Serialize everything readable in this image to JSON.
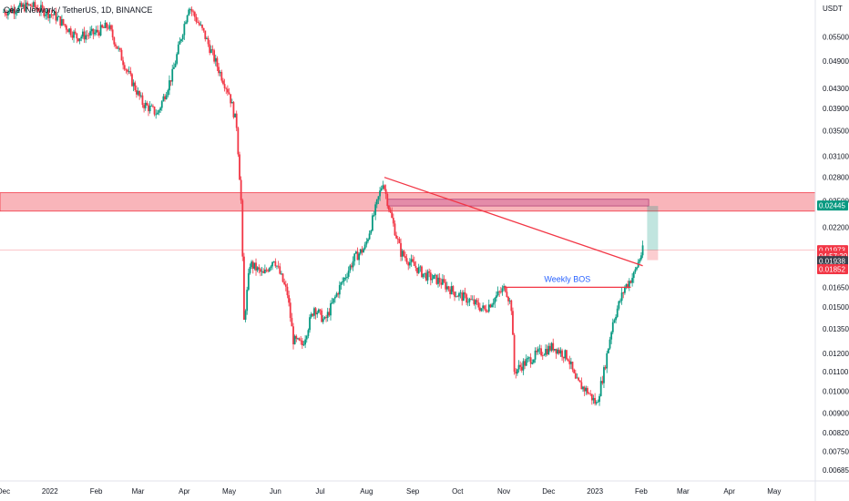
{
  "header": {
    "title": "Celer Network / TetherUS, 1D, BINANCE"
  },
  "chart_data": {
    "type": "candlestick",
    "symbol": "CELR/USDT",
    "timeframe": "1D",
    "exchange": "BINANCE",
    "y_unit": "USDT",
    "y_scale": "log",
    "y_range": [
      0.0065,
      0.064
    ],
    "x_range": [
      "2021-12-01",
      "2023-05-31"
    ],
    "price_ticks": [
      "0.05500",
      "0.04900",
      "0.04300",
      "0.03900",
      "0.03500",
      "0.03100",
      "0.02800",
      "0.02500",
      "0.02200",
      "0.01650",
      "0.01500",
      "0.01350",
      "0.01200",
      "0.01100",
      "0.01000",
      "0.00900",
      "0.00820",
      "0.00750",
      "0.00685"
    ],
    "time_ticks": [
      {
        "date": "2021-12-01",
        "label": "Dec"
      },
      {
        "date": "2022-01-01",
        "label": "2022"
      },
      {
        "date": "2022-02-01",
        "label": "Feb"
      },
      {
        "date": "2022-03-01",
        "label": "Mar"
      },
      {
        "date": "2022-04-01",
        "label": "Apr"
      },
      {
        "date": "2022-05-01",
        "label": "May"
      },
      {
        "date": "2022-06-01",
        "label": "Jun"
      },
      {
        "date": "2022-07-01",
        "label": "Jul"
      },
      {
        "date": "2022-08-01",
        "label": "Aug"
      },
      {
        "date": "2022-09-01",
        "label": "Sep"
      },
      {
        "date": "2022-10-01",
        "label": "Oct"
      },
      {
        "date": "2022-11-01",
        "label": "Nov"
      },
      {
        "date": "2022-12-01",
        "label": "Dec"
      },
      {
        "date": "2023-01-01",
        "label": "2023"
      },
      {
        "date": "2023-02-01",
        "label": "Feb"
      },
      {
        "date": "2023-03-01",
        "label": "Mar"
      },
      {
        "date": "2023-04-01",
        "label": "Apr"
      },
      {
        "date": "2023-05-01",
        "label": "May"
      }
    ],
    "price_path": [
      [
        "2021-12-01",
        0.062
      ],
      [
        "2021-12-20",
        0.064
      ],
      [
        "2022-01-05",
        0.061
      ],
      [
        "2022-01-20",
        0.055
      ],
      [
        "2022-02-01",
        0.056
      ],
      [
        "2022-02-10",
        0.058
      ],
      [
        "2022-02-25",
        0.045
      ],
      [
        "2022-03-05",
        0.04
      ],
      [
        "2022-03-15",
        0.038
      ],
      [
        "2022-03-25",
        0.046
      ],
      [
        "2022-04-05",
        0.064
      ],
      [
        "2022-04-15",
        0.056
      ],
      [
        "2022-04-25",
        0.047
      ],
      [
        "2022-05-02",
        0.042
      ],
      [
        "2022-05-07",
        0.036
      ],
      [
        "2022-05-10",
        0.025
      ],
      [
        "2022-05-12",
        0.014
      ],
      [
        "2022-05-16",
        0.0185
      ],
      [
        "2022-05-25",
        0.0175
      ],
      [
        "2022-06-01",
        0.019
      ],
      [
        "2022-06-10",
        0.016
      ],
      [
        "2022-06-14",
        0.0128
      ],
      [
        "2022-06-20",
        0.0125
      ],
      [
        "2022-06-28",
        0.015
      ],
      [
        "2022-07-05",
        0.014
      ],
      [
        "2022-07-15",
        0.0165
      ],
      [
        "2022-07-25",
        0.019
      ],
      [
        "2022-08-01",
        0.02
      ],
      [
        "2022-08-08",
        0.024
      ],
      [
        "2022-08-13",
        0.0275
      ],
      [
        "2022-08-18",
        0.0235
      ],
      [
        "2022-08-25",
        0.0195
      ],
      [
        "2022-09-01",
        0.0185
      ],
      [
        "2022-09-10",
        0.0175
      ],
      [
        "2022-09-20",
        0.017
      ],
      [
        "2022-10-01",
        0.016
      ],
      [
        "2022-10-10",
        0.0155
      ],
      [
        "2022-10-20",
        0.0148
      ],
      [
        "2022-10-28",
        0.0158
      ],
      [
        "2022-11-03",
        0.0165
      ],
      [
        "2022-11-07",
        0.015
      ],
      [
        "2022-11-09",
        0.011
      ],
      [
        "2022-11-15",
        0.0114
      ],
      [
        "2022-11-25",
        0.012
      ],
      [
        "2022-12-05",
        0.0124
      ],
      [
        "2022-12-15",
        0.0118
      ],
      [
        "2022-12-20",
        0.0105
      ],
      [
        "2022-12-28",
        0.01
      ],
      [
        "2023-01-03",
        0.0094
      ],
      [
        "2023-01-08",
        0.011
      ],
      [
        "2023-01-14",
        0.014
      ],
      [
        "2023-01-22",
        0.0165
      ],
      [
        "2023-01-28",
        0.0175
      ],
      [
        "2023-02-01",
        0.019
      ],
      [
        "2023-02-03",
        0.0197
      ]
    ],
    "annotations": {
      "supply_zone": {
        "from": 0.0238,
        "to": 0.026
      },
      "order_block": {
        "date_from": "2022-08-15",
        "date_to": "2023-02-06",
        "from": 0.0244,
        "to": 0.0252
      },
      "trendline": {
        "from": [
          "2022-08-13",
          0.028
        ],
        "to": [
          "2023-02-02",
          0.0183
        ]
      },
      "weekly_bos": {
        "label": "Weekly BOS",
        "price": 0.0165,
        "date_from": "2022-11-01",
        "date_to": "2023-01-25"
      },
      "position": {
        "date": "2023-02-08",
        "entry": 0.01973,
        "target": 0.0244,
        "stop": 0.0188
      }
    },
    "price_badges": [
      {
        "label": "0.02445",
        "color": "#089981",
        "price": 0.02445
      },
      {
        "label": "0.01973",
        "color": "#f23645",
        "price": 0.01973
      },
      {
        "label": "04:57:20",
        "color": "#f23645",
        "price": 0.0192
      },
      {
        "label": "0.01938",
        "color": "#3a3f4b",
        "price": 0.01872
      },
      {
        "label": "0.01852",
        "color": "#f23645",
        "price": 0.018
      }
    ],
    "colors": {
      "up": "#089981",
      "down": "#f23645",
      "zone": "#f7a3a9",
      "zone_border": "#f23645",
      "ob": "#d36a9a",
      "trend": "#f23645",
      "bos": "#f23645",
      "bos_label": "#2962ff"
    }
  }
}
